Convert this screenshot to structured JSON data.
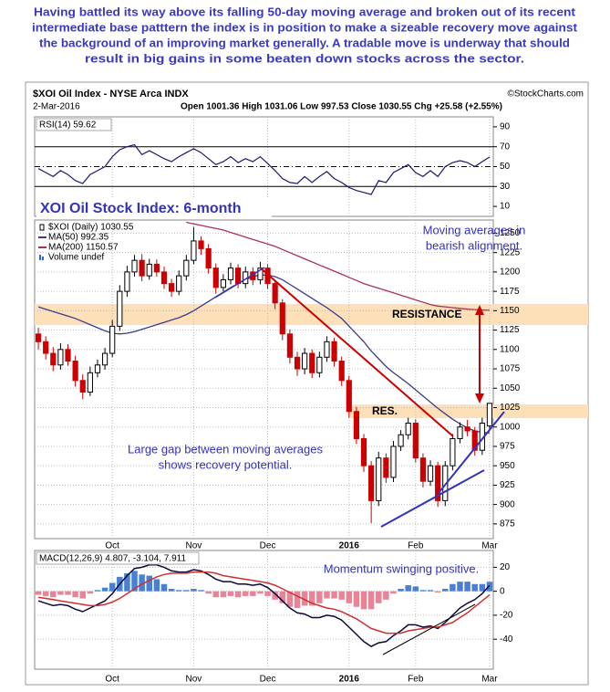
{
  "header": {
    "lines": [
      "Having battled its way above its falling 50-day moving average and broken out of its recent",
      "intermediate base patttern the index is in position to make a sizeable recovery move against",
      "the background of an improving market generally. A tradable move is underway that should",
      "result in big gains in some beaten down stocks across the sector."
    ]
  },
  "chart_data": [
    {
      "type": "candlestick",
      "title": "$XOI Oil Index - NYSE Arca INDX",
      "date": "2-Mar-2016",
      "quote": "Open 1001.36  High 1031.06  Low 997.53  Close 1030.55  Chg +25.58 (+2.55%)",
      "source": "©StockCharts.com",
      "annotations": {
        "panel_title": "XOI Oil Stock Index: 6-month",
        "ma_note": [
          "Moving averages in",
          "bearish alignment."
        ],
        "resistance": "RESISTANCE",
        "res": "RES.",
        "gap_note": [
          "Large gap between moving averages",
          "shows recovery potential."
        ]
      },
      "categories": [
        null,
        null,
        null,
        null,
        null,
        null,
        null,
        null,
        null,
        null,
        "Oct",
        null,
        null,
        null,
        null,
        null,
        null,
        null,
        null,
        null,
        null,
        "Nov",
        null,
        null,
        null,
        null,
        null,
        null,
        null,
        null,
        null,
        "Dec",
        null,
        null,
        null,
        null,
        null,
        null,
        null,
        null,
        null,
        null,
        "2016",
        null,
        null,
        null,
        null,
        null,
        null,
        null,
        null,
        "Feb",
        null,
        null,
        null,
        null,
        null,
        null,
        null,
        null,
        null,
        "Mar"
      ],
      "candles": {
        "name": "$XOI (Daily) 1030.55",
        "up_color": "#000000",
        "down_color": "#cc0000",
        "open": [
          1120,
          1110,
          1095,
          1080,
          1100,
          1085,
          1060,
          1045,
          1070,
          1080,
          1095,
          1130,
          1175,
          1200,
          1215,
          1195,
          1210,
          1200,
          1185,
          1175,
          1195,
          1215,
          1240,
          1230,
          1205,
          1180,
          1190,
          1205,
          1185,
          1200,
          1190,
          1205,
          1185,
          1160,
          1120,
          1090,
          1075,
          1095,
          1070,
          1090,
          1110,
          1085,
          1060,
          1020,
          985,
          950,
          905,
          960,
          935,
          975,
          990,
          1005,
          960,
          930,
          950,
          905,
          950,
          985,
          1000,
          995,
          970,
          1001.36
        ],
        "high": [
          1128,
          1117,
          1103,
          1108,
          1107,
          1092,
          1068,
          1078,
          1087,
          1102,
          1138,
          1183,
          1208,
          1222,
          1223,
          1217,
          1216,
          1207,
          1191,
          1202,
          1222,
          1258,
          1246,
          1236,
          1211,
          1197,
          1212,
          1210,
          1207,
          1206,
          1213,
          1210,
          1190,
          1165,
          1126,
          1097,
          1102,
          1100,
          1097,
          1117,
          1115,
          1091,
          1066,
          1026,
          991,
          956,
          968,
          966,
          982,
          996,
          1012,
          1010,
          966,
          957,
          955,
          956,
          991,
          1006,
          1009,
          1000,
          1012,
          1031.06
        ],
        "low": [
          1100,
          1087,
          1072,
          1074,
          1079,
          1052,
          1036,
          1040,
          1064,
          1074,
          1090,
          1124,
          1168,
          1194,
          1188,
          1190,
          1194,
          1178,
          1168,
          1170,
          1189,
          1210,
          1222,
          1198,
          1172,
          1175,
          1184,
          1179,
          1179,
          1183,
          1184,
          1178,
          1152,
          1112,
          1082,
          1066,
          1068,
          1063,
          1064,
          1084,
          1078,
          1053,
          1012,
          978,
          942,
          876,
          898,
          928,
          929,
          969,
          984,
          954,
          922,
          924,
          897,
          898,
          944,
          979,
          988,
          963,
          964,
          997.53
        ],
        "close": [
          1110,
          1095,
          1080,
          1100,
          1085,
          1060,
          1045,
          1070,
          1080,
          1095,
          1130,
          1175,
          1200,
          1215,
          1195,
          1210,
          1200,
          1185,
          1175,
          1195,
          1215,
          1240,
          1230,
          1205,
          1180,
          1190,
          1205,
          1185,
          1200,
          1190,
          1205,
          1185,
          1160,
          1120,
          1090,
          1075,
          1095,
          1070,
          1090,
          1110,
          1085,
          1060,
          1020,
          985,
          950,
          905,
          960,
          935,
          975,
          990,
          1005,
          960,
          930,
          950,
          905,
          950,
          985,
          1000,
          995,
          970,
          1005,
          1030.55
        ]
      },
      "series": [
        {
          "name": "MA(50) 992.35",
          "color": "#3c3c8c",
          "values": [
            1155,
            1152,
            1149,
            1146,
            1143,
            1140,
            1136,
            1132,
            1128,
            1124,
            1121,
            1120,
            1121,
            1123,
            1126,
            1129,
            1132,
            1135,
            1138,
            1141,
            1145,
            1150,
            1156,
            1162,
            1168,
            1174,
            1180,
            1185,
            1190,
            1194,
            1196,
            1196,
            1194,
            1190,
            1184,
            1178,
            1172,
            1166,
            1160,
            1154,
            1147,
            1140,
            1130,
            1120,
            1110,
            1098,
            1088,
            1078,
            1070,
            1063,
            1056,
            1048,
            1040,
            1032,
            1024,
            1017,
            1010,
            1004,
            999,
            995,
            993,
            992.35
          ]
        },
        {
          "name": "MA(200) 1150.57",
          "color": "#aa3355",
          "values": [
            null,
            null,
            null,
            null,
            null,
            null,
            null,
            null,
            null,
            null,
            null,
            null,
            null,
            null,
            null,
            null,
            null,
            null,
            null,
            null,
            1264,
            1262,
            1260,
            1258,
            1256,
            1254,
            1251,
            1248,
            1245,
            1242,
            1239,
            1236,
            1233,
            1229,
            1225,
            1221,
            1217,
            1213,
            1209,
            1205,
            1201,
            1197,
            1193,
            1189,
            1185,
            1182,
            1179,
            1176,
            1173,
            1170,
            1167,
            1164,
            1161,
            1158,
            1156,
            1155,
            1154,
            1153,
            1152,
            1151.5,
            1151,
            1150.57
          ]
        }
      ],
      "volume_legend": "Volume undef",
      "ylim": [
        856,
        1267
      ],
      "yticks": [
        875,
        900,
        925,
        950,
        975,
        1000,
        1025,
        1050,
        1075,
        1100,
        1125,
        1150,
        1175,
        1200,
        1225,
        1250
      ],
      "grid": true
    },
    {
      "type": "line",
      "title": "RSI(14) 59.62",
      "color": "#1a1a6e",
      "values": [
        48,
        44,
        40,
        46,
        42,
        36,
        33,
        42,
        46,
        50,
        60,
        67,
        70,
        72,
        62,
        66,
        62,
        58,
        55,
        60,
        64,
        68,
        64,
        58,
        52,
        55,
        60,
        54,
        58,
        55,
        60,
        53,
        46,
        38,
        34,
        33,
        40,
        34,
        40,
        45,
        38,
        34,
        29,
        26,
        24,
        22,
        36,
        34,
        44,
        48,
        52,
        44,
        40,
        46,
        40,
        50,
        54,
        56,
        54,
        50,
        55,
        59.62
      ],
      "reference_lines": [
        {
          "value": 70,
          "style": "solid"
        },
        {
          "value": 50,
          "style": "dashdot"
        },
        {
          "value": 30,
          "style": "solid"
        }
      ],
      "ylim": [
        0,
        100
      ],
      "yticks": [
        10,
        30,
        50,
        70,
        90
      ],
      "grid": false
    },
    {
      "type": "macd",
      "title": "MACD(12,26,9) 4.807, -3.104, 7.911",
      "annotation": "Momentum swinging positive.",
      "series": [
        {
          "kind": "histogram",
          "color": "#4a7fd6",
          "negative_color": "#e88497",
          "values": [
            -3,
            -4,
            -5,
            -3,
            -3,
            -5,
            -6,
            -2,
            1,
            3,
            7,
            12,
            15,
            17,
            14,
            13,
            10,
            6,
            2,
            1,
            1,
            2,
            1,
            -2,
            -5,
            -5,
            -4,
            -5,
            -4,
            -4,
            -2,
            -4,
            -7,
            -10,
            -13,
            -14,
            -12,
            -12,
            -10,
            -6,
            -6,
            -7,
            -10,
            -13,
            -15,
            -15,
            -10,
            -7,
            -2,
            2,
            5,
            4,
            1,
            1,
            -1,
            2,
            6,
            8,
            8,
            6,
            6,
            7.911
          ]
        },
        {
          "kind": "line",
          "color": "#0a0a3a",
          "values": [
            -8,
            -10,
            -12,
            -11,
            -12,
            -15,
            -17,
            -14,
            -11,
            -8,
            -2,
            6,
            13,
            19,
            20,
            22,
            22,
            20,
            17,
            16,
            16,
            18,
            17,
            14,
            10,
            8,
            8,
            6,
            6,
            5,
            6,
            3,
            -2,
            -8,
            -14,
            -18,
            -19,
            -22,
            -22,
            -20,
            -21,
            -24,
            -30,
            -36,
            -42,
            -46,
            -43,
            -42,
            -37,
            -33,
            -28,
            -28,
            -30,
            -29,
            -31,
            -26,
            -20,
            -14,
            -10,
            -7,
            -2,
            4.807
          ]
        },
        {
          "kind": "line",
          "color": "#d03030",
          "values": [
            -5,
            -6,
            -7,
            -8,
            -9,
            -10,
            -11,
            -12,
            -12,
            -11,
            -9,
            -6,
            -2,
            2,
            6,
            9,
            12,
            14,
            15,
            15,
            15,
            16,
            16,
            16,
            15,
            13,
            12,
            11,
            10,
            9,
            8,
            7,
            5,
            2,
            -1,
            -4,
            -7,
            -10,
            -12,
            -14,
            -15,
            -17,
            -20,
            -23,
            -27,
            -31,
            -33,
            -35,
            -35,
            -35,
            -33,
            -32,
            -31,
            -30,
            -30,
            -28,
            -26,
            -22,
            -18,
            -13,
            -8,
            -3.104
          ]
        }
      ],
      "ylim": [
        -65,
        34
      ],
      "yticks": [
        -40,
        -20,
        0,
        20
      ],
      "grid": true
    }
  ]
}
